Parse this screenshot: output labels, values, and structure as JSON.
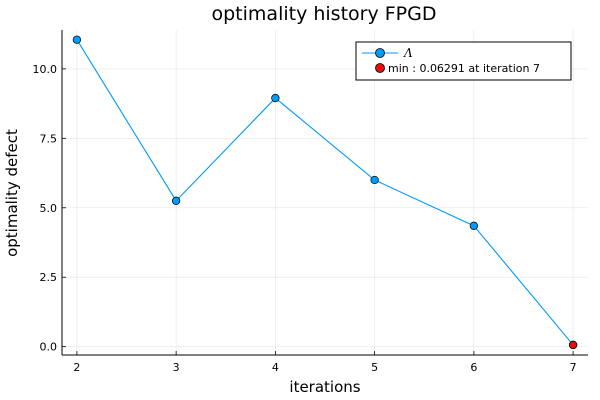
{
  "chart_data": {
    "type": "line",
    "title": "optimality history FPGD",
    "xlabel": "iterations",
    "ylabel": "optimality defect",
    "x": [
      2,
      3,
      4,
      5,
      6,
      7
    ],
    "xlim": [
      1.85,
      7.15
    ],
    "ylim": [
      -0.3,
      11.4
    ],
    "xticks": [
      "2",
      "3",
      "4",
      "5",
      "6",
      "7"
    ],
    "yticks": [
      "0.0",
      "2.5",
      "5.0",
      "7.5",
      "10.0"
    ],
    "ytick_values": [
      0,
      2.5,
      5,
      7.5,
      10
    ],
    "grid": true,
    "legend_position": "top-right",
    "series": [
      {
        "name": "Λ",
        "values": [
          11.05,
          5.25,
          8.95,
          6.0,
          4.35,
          0.06291
        ],
        "color": "#009af9"
      }
    ],
    "highlight": {
      "name": "min : 0.06291 at iteration 7",
      "x": 7,
      "y": 0.06291,
      "color": "#e20f0f"
    }
  }
}
